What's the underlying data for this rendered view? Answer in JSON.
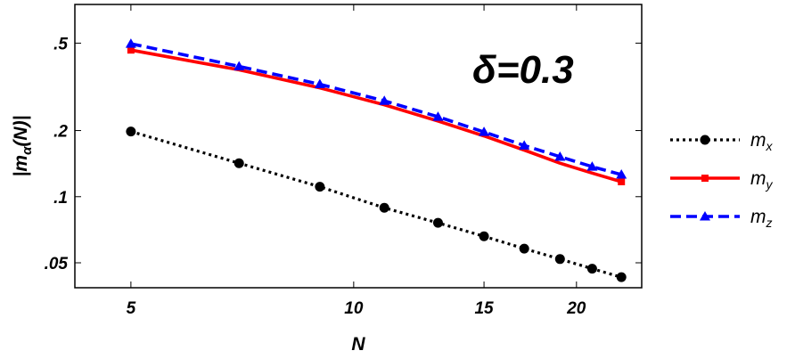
{
  "chart_data": {
    "type": "line",
    "title": "",
    "annotation": "δ=0.3",
    "xlabel": "N",
    "ylabel": "|m_α(N)|",
    "xscale": "log",
    "yscale": "log",
    "xlim": [
      4.2,
      24.5
    ],
    "ylim": [
      0.0385,
      0.75
    ],
    "xticks": [
      5,
      10,
      15,
      20
    ],
    "xtick_labels": [
      "5",
      "10",
      "15",
      "20"
    ],
    "yticks": [
      0.05,
      0.1,
      0.2,
      0.5
    ],
    "ytick_labels": [
      ".05",
      ".1",
      ".2",
      ".5"
    ],
    "grid": false,
    "legend_position": "right",
    "x": [
      5,
      7,
      9,
      11,
      13,
      15,
      17,
      19,
      21,
      23
    ],
    "series": [
      {
        "name": "m",
        "subscript": "x",
        "color": "#000000",
        "dash": "dotted",
        "marker": "circle",
        "marker_indices": [
          0,
          1,
          2,
          3,
          4,
          5,
          6,
          7,
          8,
          9
        ],
        "values": [
          0.198,
          0.142,
          0.111,
          0.089,
          0.076,
          0.066,
          0.058,
          0.052,
          0.047,
          0.043
        ]
      },
      {
        "name": "m",
        "subscript": "y",
        "color": "#ff0000",
        "dash": "solid",
        "marker": "square",
        "marker_indices": [
          0,
          9
        ],
        "values": [
          0.465,
          0.378,
          0.313,
          0.262,
          0.221,
          0.189,
          0.163,
          0.142,
          0.128,
          0.117
        ]
      },
      {
        "name": "m",
        "subscript": "z",
        "color": "#0000ff",
        "dash": "dashed",
        "marker": "triangle",
        "marker_indices": [
          0,
          1,
          2,
          3,
          4,
          5,
          6,
          7,
          8,
          9
        ],
        "values": [
          0.497,
          0.392,
          0.325,
          0.273,
          0.231,
          0.197,
          0.171,
          0.152,
          0.137,
          0.126
        ]
      }
    ]
  }
}
